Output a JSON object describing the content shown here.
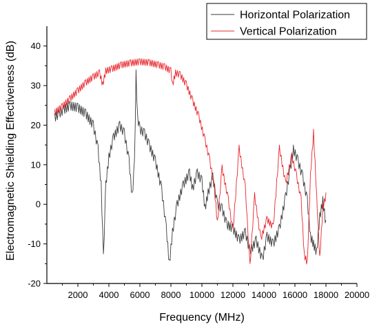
{
  "chart_data": {
    "type": "line",
    "xlabel": "Frequency (MHz)",
    "ylabel": "Electromagnetic Shielding Effectiveness (dB)",
    "xlim": [
      0,
      20000
    ],
    "ylim": [
      -20,
      45
    ],
    "xticks": [
      2000,
      4000,
      6000,
      8000,
      10000,
      12000,
      14000,
      16000,
      18000,
      20000
    ],
    "yticks": [
      -20,
      -10,
      0,
      10,
      20,
      30,
      40
    ],
    "grid": false,
    "legend_position": "top-right",
    "series": [
      {
        "name": "Horizontal Polarization",
        "color": "#3a3a3a",
        "x": [
          500,
          800,
          1100,
          1500,
          2000,
          2500,
          3000,
          3300,
          3500,
          3650,
          3800,
          4000,
          4300,
          4700,
          5000,
          5300,
          5500,
          5650,
          5750,
          5850,
          6000,
          6300,
          6600,
          7000,
          7400,
          7700,
          7900,
          8100,
          8400,
          8800,
          9200,
          9400,
          9700,
          10000,
          10200,
          10400,
          10700,
          11000,
          11300,
          11600,
          12000,
          12400,
          12800,
          13100,
          13500,
          13900,
          14200,
          14600,
          15000,
          15400,
          15700,
          15900,
          16200,
          16500,
          16800,
          17000,
          17200,
          17400,
          17600,
          17800,
          18000
        ],
        "y": [
          23,
          24,
          25,
          26,
          25.5,
          24,
          21,
          15,
          6,
          -12.5,
          6,
          13,
          18,
          21,
          19,
          12,
          3,
          11,
          34,
          23,
          20,
          19,
          16,
          12,
          5,
          -5,
          -14,
          -6,
          1,
          6,
          9,
          5,
          9,
          7,
          0,
          4,
          8,
          1,
          0,
          -4,
          -5,
          -8,
          -6,
          -11,
          -8,
          -13,
          -7,
          -9,
          -5,
          3,
          10,
          15,
          12,
          8,
          2,
          -7,
          -9,
          -11,
          -2,
          2,
          -4
        ]
      },
      {
        "name": "Vertical Polarization",
        "color": "#e8242a",
        "x": [
          500,
          1000,
          1500,
          2000,
          2500,
          3000,
          3400,
          3600,
          3800,
          4200,
          4800,
          5400,
          6000,
          6600,
          7200,
          7600,
          8000,
          8100,
          8300,
          8600,
          9000,
          9400,
          9800,
          10200,
          10500,
          10800,
          11000,
          11300,
          11700,
          12000,
          12400,
          12800,
          13100,
          13400,
          13800,
          14200,
          14600,
          15000,
          15400,
          15800,
          16100,
          16400,
          16600,
          16800,
          17000,
          17200,
          17400,
          17600,
          17800,
          18000
        ],
        "y": [
          24,
          25.5,
          27.5,
          29.5,
          31.5,
          33,
          34,
          31,
          34.5,
          35,
          36,
          36.5,
          36.8,
          36.6,
          36,
          35.5,
          34.5,
          31,
          34,
          33.5,
          31,
          27,
          23,
          17,
          12,
          5,
          -4,
          10,
          2,
          -6,
          15,
          5,
          -15,
          3,
          -8,
          -3,
          -5,
          15,
          6,
          13,
          8,
          2,
          -12,
          -14,
          8,
          19,
          3,
          -13,
          0,
          3
        ]
      }
    ]
  }
}
